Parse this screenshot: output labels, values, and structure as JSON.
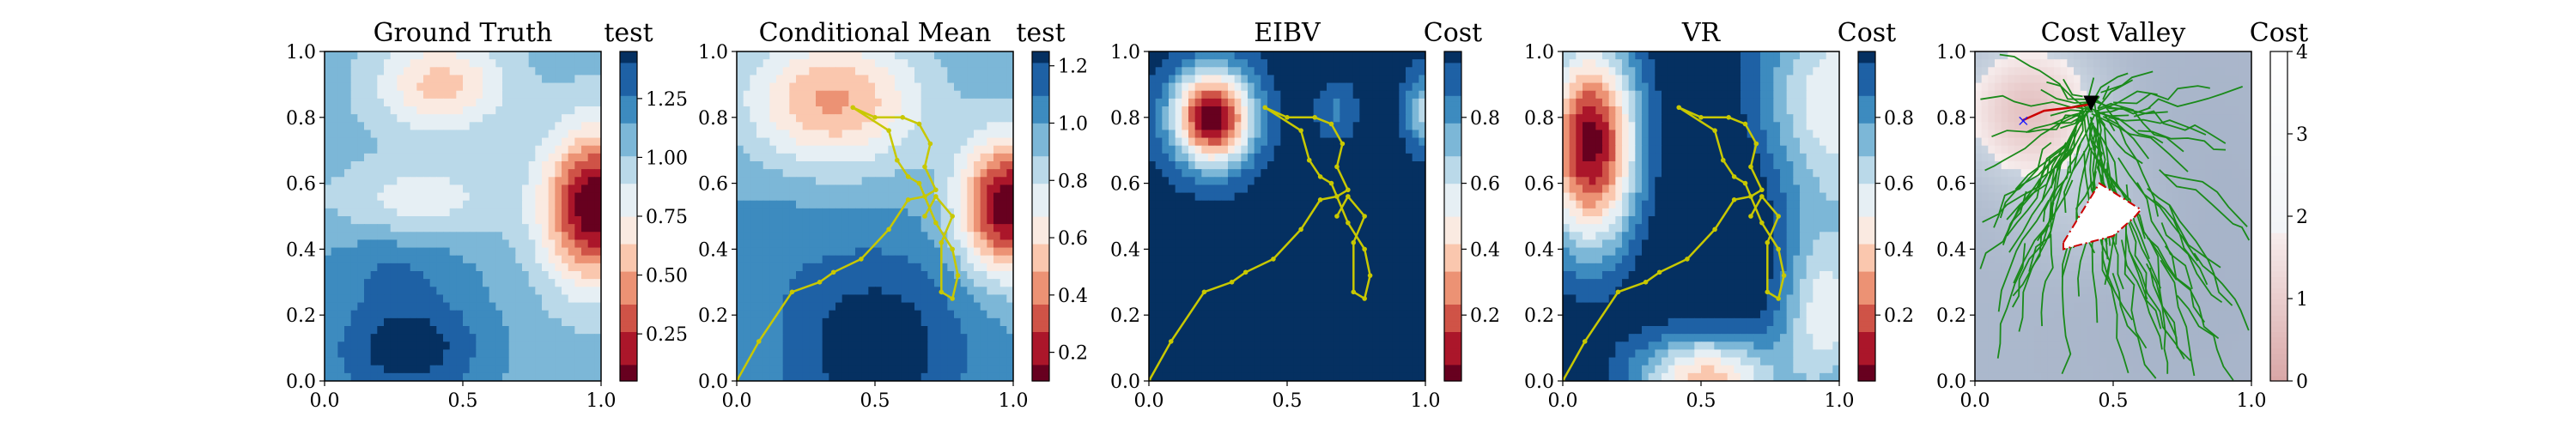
{
  "chart_data": [
    {
      "type": "heatmap",
      "title": "Ground Truth",
      "colorbar_label": "test",
      "xlim": [
        0.0,
        1.0
      ],
      "ylim": [
        0.0,
        1.0
      ],
      "x_ticks": [
        "0.0",
        "0.5",
        "1.0"
      ],
      "y_ticks": [
        "0.0",
        "0.2",
        "0.4",
        "0.6",
        "0.8",
        "1.0"
      ],
      "colorbar_range": [
        0.05,
        1.45
      ],
      "colorbar_ticks": [
        "0.25",
        "0.50",
        "0.75",
        "1.00",
        "1.25"
      ],
      "colormap": "RdBu",
      "path": []
    },
    {
      "type": "heatmap",
      "title": "Conditional Mean",
      "colorbar_label": "test",
      "xlim": [
        0.0,
        1.0
      ],
      "ylim": [
        0.0,
        1.0
      ],
      "x_ticks": [
        "0.0",
        "0.5",
        "1.0"
      ],
      "y_ticks": [
        "0.0",
        "0.2",
        "0.4",
        "0.6",
        "0.8",
        "1.0"
      ],
      "colorbar_range": [
        0.1,
        1.25
      ],
      "colorbar_ticks": [
        "0.2",
        "0.4",
        "0.6",
        "0.8",
        "1.0",
        "1.2"
      ],
      "colormap": "RdBu",
      "path": [
        [
          0.0,
          0.0
        ],
        [
          0.08,
          0.12
        ],
        [
          0.2,
          0.27
        ],
        [
          0.3,
          0.3
        ],
        [
          0.35,
          0.33
        ],
        [
          0.45,
          0.37
        ],
        [
          0.55,
          0.46
        ],
        [
          0.62,
          0.55
        ],
        [
          0.68,
          0.56
        ],
        [
          0.72,
          0.58
        ],
        [
          0.68,
          0.65
        ],
        [
          0.7,
          0.72
        ],
        [
          0.66,
          0.78
        ],
        [
          0.6,
          0.8
        ],
        [
          0.5,
          0.8
        ],
        [
          0.42,
          0.83
        ],
        [
          0.55,
          0.76
        ],
        [
          0.58,
          0.67
        ],
        [
          0.62,
          0.62
        ],
        [
          0.66,
          0.6
        ],
        [
          0.72,
          0.48
        ],
        [
          0.78,
          0.4
        ],
        [
          0.8,
          0.32
        ],
        [
          0.78,
          0.25
        ],
        [
          0.74,
          0.27
        ],
        [
          0.74,
          0.42
        ],
        [
          0.78,
          0.5
        ],
        [
          0.72,
          0.56
        ],
        [
          0.68,
          0.5
        ]
      ],
      "path_color": "#c8c800"
    },
    {
      "type": "heatmap",
      "title": "EIBV",
      "colorbar_label": "Cost",
      "xlim": [
        0.0,
        1.0
      ],
      "ylim": [
        0.0,
        1.0
      ],
      "x_ticks": [
        "0.0",
        "0.5",
        "1.0"
      ],
      "y_ticks": [
        "0.0",
        "0.2",
        "0.4",
        "0.6",
        "0.8",
        "1.0"
      ],
      "colorbar_range": [
        0.0,
        1.0
      ],
      "colorbar_ticks": [
        "0.2",
        "0.4",
        "0.6",
        "0.8"
      ],
      "colormap": "RdBu",
      "path": [
        [
          0.0,
          0.0
        ],
        [
          0.08,
          0.12
        ],
        [
          0.2,
          0.27
        ],
        [
          0.3,
          0.3
        ],
        [
          0.35,
          0.33
        ],
        [
          0.45,
          0.37
        ],
        [
          0.55,
          0.46
        ],
        [
          0.62,
          0.55
        ],
        [
          0.68,
          0.56
        ],
        [
          0.72,
          0.58
        ],
        [
          0.68,
          0.65
        ],
        [
          0.7,
          0.72
        ],
        [
          0.66,
          0.78
        ],
        [
          0.6,
          0.8
        ],
        [
          0.5,
          0.8
        ],
        [
          0.42,
          0.83
        ],
        [
          0.55,
          0.76
        ],
        [
          0.58,
          0.67
        ],
        [
          0.62,
          0.62
        ],
        [
          0.66,
          0.6
        ],
        [
          0.72,
          0.48
        ],
        [
          0.78,
          0.4
        ],
        [
          0.8,
          0.32
        ],
        [
          0.78,
          0.25
        ],
        [
          0.74,
          0.27
        ],
        [
          0.74,
          0.42
        ],
        [
          0.78,
          0.5
        ],
        [
          0.72,
          0.56
        ],
        [
          0.68,
          0.5
        ]
      ],
      "path_color": "#c8c800"
    },
    {
      "type": "heatmap",
      "title": "VR",
      "colorbar_label": "Cost",
      "xlim": [
        0.0,
        1.0
      ],
      "ylim": [
        0.0,
        1.0
      ],
      "x_ticks": [
        "0.0",
        "0.5",
        "1.0"
      ],
      "y_ticks": [
        "0.0",
        "0.2",
        "0.4",
        "0.6",
        "0.8",
        "1.0"
      ],
      "colorbar_range": [
        0.0,
        1.0
      ],
      "colorbar_ticks": [
        "0.2",
        "0.4",
        "0.6",
        "0.8"
      ],
      "colormap": "RdBu",
      "path": [
        [
          0.0,
          0.0
        ],
        [
          0.08,
          0.12
        ],
        [
          0.2,
          0.27
        ],
        [
          0.3,
          0.3
        ],
        [
          0.35,
          0.33
        ],
        [
          0.45,
          0.37
        ],
        [
          0.55,
          0.46
        ],
        [
          0.62,
          0.55
        ],
        [
          0.68,
          0.56
        ],
        [
          0.72,
          0.58
        ],
        [
          0.68,
          0.65
        ],
        [
          0.7,
          0.72
        ],
        [
          0.66,
          0.78
        ],
        [
          0.6,
          0.8
        ],
        [
          0.5,
          0.8
        ],
        [
          0.42,
          0.83
        ],
        [
          0.55,
          0.76
        ],
        [
          0.58,
          0.67
        ],
        [
          0.62,
          0.62
        ],
        [
          0.66,
          0.6
        ],
        [
          0.72,
          0.48
        ],
        [
          0.78,
          0.4
        ],
        [
          0.8,
          0.32
        ],
        [
          0.78,
          0.25
        ],
        [
          0.74,
          0.27
        ],
        [
          0.74,
          0.42
        ],
        [
          0.78,
          0.5
        ],
        [
          0.72,
          0.56
        ],
        [
          0.68,
          0.5
        ]
      ],
      "path_color": "#c8c800"
    },
    {
      "type": "heatmap",
      "title": "Cost Valley",
      "colorbar_label": "Cost",
      "xlim": [
        0.0,
        1.0
      ],
      "ylim": [
        0.0,
        1.0
      ],
      "x_ticks": [
        "0.0",
        "0.5",
        "1.0"
      ],
      "y_ticks": [
        "0.0",
        "0.2",
        "0.4",
        "0.6",
        "0.8",
        "1.0"
      ],
      "colorbar_range": [
        0.0,
        4.0
      ],
      "colorbar_ticks": [
        "0",
        "1",
        "2",
        "3",
        "4"
      ],
      "colormap": "RdBu_light",
      "tree_color": "#1a8a1a",
      "current_location": [
        0.42,
        0.84
      ],
      "target_location": [
        0.17,
        0.79
      ],
      "obstacle_polygon": [
        [
          0.32,
          0.42
        ],
        [
          0.45,
          0.6
        ],
        [
          0.6,
          0.52
        ],
        [
          0.58,
          0.5
        ],
        [
          0.5,
          0.44
        ],
        [
          0.32,
          0.4
        ]
      ],
      "path": [
        [
          0.17,
          0.79
        ],
        [
          0.25,
          0.82
        ],
        [
          0.35,
          0.83
        ],
        [
          0.42,
          0.84
        ]
      ],
      "path_color": "#cc0000"
    }
  ]
}
